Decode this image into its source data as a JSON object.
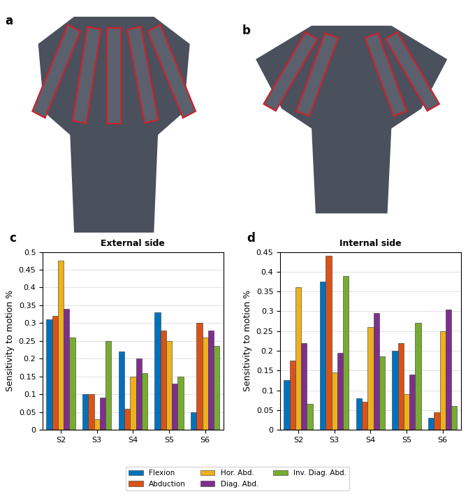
{
  "photos": [
    {
      "label": "a"
    },
    {
      "label": "b"
    }
  ],
  "chart_data": [
    {
      "type": "bar",
      "title": "External side",
      "annotations": [
        "c"
      ],
      "ylabel": "Sensitivity to motion %",
      "categories": [
        "S2",
        "S3",
        "S4",
        "S5",
        "S6"
      ],
      "series": [
        {
          "name": "Flexion",
          "color": "#0072BD",
          "values": [
            0.31,
            0.1,
            0.22,
            0.33,
            0.05
          ]
        },
        {
          "name": "Abduction",
          "color": "#D95319",
          "values": [
            0.32,
            0.1,
            0.06,
            0.28,
            0.3
          ]
        },
        {
          "name": "Hor. Abd.",
          "color": "#EDB120",
          "values": [
            0.475,
            0.03,
            0.15,
            0.25,
            0.26
          ]
        },
        {
          "name": "Diag. Abd.",
          "color": "#7E2F8E",
          "values": [
            0.34,
            0.09,
            0.2,
            0.13,
            0.28
          ]
        },
        {
          "name": "Inv. Diag. Abd.",
          "color": "#77AC30",
          "values": [
            0.26,
            0.25,
            0.16,
            0.15,
            0.235
          ]
        }
      ],
      "ylim": [
        0,
        0.5
      ],
      "yticks": [
        0,
        0.05,
        0.1,
        0.15,
        0.2,
        0.25,
        0.3,
        0.35,
        0.4,
        0.45,
        0.5
      ],
      "grid": true,
      "legend": "lower center"
    },
    {
      "type": "bar",
      "title": "Internal side",
      "annotations": [
        "d"
      ],
      "ylabel": "Sensitivity to motion %",
      "categories": [
        "S2",
        "S3",
        "S4",
        "S5",
        "S6"
      ],
      "series": [
        {
          "name": "Flexion",
          "color": "#0072BD",
          "values": [
            0.125,
            0.375,
            0.08,
            0.2,
            0.03
          ]
        },
        {
          "name": "Abduction",
          "color": "#D95319",
          "values": [
            0.175,
            0.44,
            0.07,
            0.22,
            0.045
          ]
        },
        {
          "name": "Hor. Abd.",
          "color": "#EDB120",
          "values": [
            0.36,
            0.145,
            0.26,
            0.09,
            0.25
          ]
        },
        {
          "name": "Diag. Abd.",
          "color": "#7E2F8E",
          "values": [
            0.22,
            0.195,
            0.295,
            0.14,
            0.305
          ]
        },
        {
          "name": "Inv. Diag. Abd.",
          "color": "#77AC30",
          "values": [
            0.065,
            0.39,
            0.185,
            0.27,
            0.06
          ]
        }
      ],
      "ylim": [
        0,
        0.45
      ],
      "yticks": [
        0,
        0.05,
        0.1,
        0.15,
        0.2,
        0.25,
        0.3,
        0.35,
        0.4,
        0.45
      ],
      "grid": true
    }
  ]
}
